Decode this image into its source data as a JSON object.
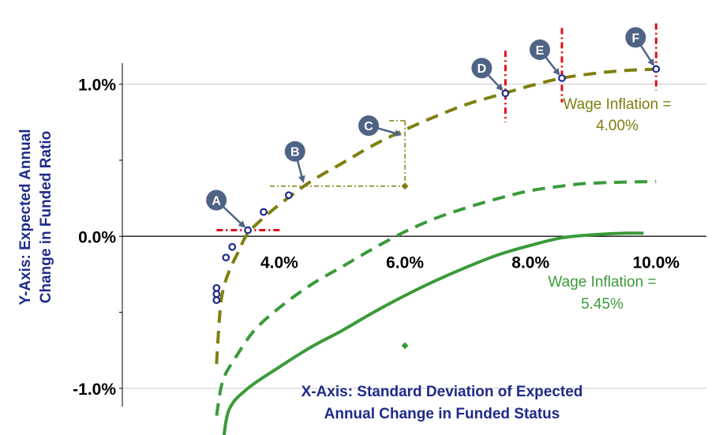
{
  "chart_data": {
    "type": "line",
    "x_label": [
      "X-Axis: Standard Deviation of Expected",
      "Annual Change in Funded Status"
    ],
    "y_label": [
      "Y-Axis: Expected Annual",
      "Change in Funded Ratio"
    ],
    "x_ticks": [
      "4.0%",
      "6.0%",
      "8.0%",
      "10.0%"
    ],
    "x_tick_values": [
      4,
      6,
      8,
      10
    ],
    "y_ticks": [
      "1.0%",
      "0.0%",
      "-1.0%"
    ],
    "y_tick_values": [
      1.0,
      0.0,
      -1.0
    ],
    "xlim": [
      1.5,
      10.8
    ],
    "ylim": [
      -1.25,
      1.45
    ],
    "grid": "horizontal",
    "series": [
      {
        "label": [
          "Wage Inflation =",
          "4.00%"
        ],
        "color": "#7f7f0f",
        "style": "dashed",
        "points": [
          [
            3.0,
            -0.84
          ],
          [
            3.05,
            -0.52
          ],
          [
            3.1,
            -0.36
          ],
          [
            3.2,
            -0.23
          ],
          [
            3.35,
            -0.1
          ],
          [
            3.5,
            0.02
          ],
          [
            3.8,
            0.14
          ],
          [
            4.1,
            0.24
          ],
          [
            4.5,
            0.36
          ],
          [
            5.0,
            0.48
          ],
          [
            5.5,
            0.6
          ],
          [
            6.0,
            0.7
          ],
          [
            6.5,
            0.79
          ],
          [
            7.0,
            0.87
          ],
          [
            7.5,
            0.93
          ],
          [
            8.0,
            0.99
          ],
          [
            8.5,
            1.04
          ],
          [
            9.0,
            1.07
          ],
          [
            9.5,
            1.09
          ],
          [
            10.1,
            1.1
          ]
        ]
      },
      {
        "color": "#3a9a3a",
        "style": "dashed",
        "points": [
          [
            3.0,
            -1.18
          ],
          [
            3.1,
            -0.95
          ],
          [
            3.3,
            -0.8
          ],
          [
            3.6,
            -0.62
          ],
          [
            4.0,
            -0.47
          ],
          [
            4.5,
            -0.32
          ],
          [
            5.0,
            -0.2
          ],
          [
            5.5,
            -0.08
          ],
          [
            6.0,
            0.03
          ],
          [
            6.5,
            0.12
          ],
          [
            7.0,
            0.19
          ],
          [
            7.5,
            0.25
          ],
          [
            8.0,
            0.3
          ],
          [
            8.5,
            0.33
          ],
          [
            9.0,
            0.35
          ],
          [
            10.0,
            0.36
          ]
        ]
      },
      {
        "label": [
          "Wage Inflation =",
          "5.45%"
        ],
        "color": "#3a9a3a",
        "style": "solid",
        "points": [
          [
            3.1,
            -1.38
          ],
          [
            3.2,
            -1.14
          ],
          [
            3.5,
            -1.0
          ],
          [
            4.0,
            -0.86
          ],
          [
            4.5,
            -0.73
          ],
          [
            5.0,
            -0.62
          ],
          [
            5.5,
            -0.5
          ],
          [
            6.0,
            -0.39
          ],
          [
            6.5,
            -0.29
          ],
          [
            7.0,
            -0.2
          ],
          [
            7.5,
            -0.12
          ],
          [
            8.0,
            -0.06
          ],
          [
            8.5,
            -0.01
          ],
          [
            9.0,
            0.01
          ],
          [
            9.5,
            0.02
          ],
          [
            9.8,
            0.02
          ]
        ]
      }
    ],
    "portfolio_points": [
      [
        3.0,
        -0.34
      ],
      [
        3.0,
        -0.38
      ],
      [
        3.0,
        -0.42
      ],
      [
        3.15,
        -0.14
      ],
      [
        3.25,
        -0.07
      ],
      [
        3.5,
        0.04
      ],
      [
        3.75,
        0.16
      ],
      [
        4.15,
        0.27
      ],
      [
        7.6,
        0.94
      ],
      [
        8.5,
        1.04
      ],
      [
        10.0,
        1.1
      ]
    ],
    "markers": [
      {
        "letter": "A",
        "x": 3.5,
        "y": 0.04
      },
      {
        "letter": "B",
        "x": 4.4,
        "y": 0.33
      },
      {
        "letter": "C",
        "x": 6.0,
        "y": 0.66
      },
      {
        "letter": "D",
        "x": 7.6,
        "y": 0.94
      },
      {
        "letter": "E",
        "x": 8.5,
        "y": 1.04
      },
      {
        "letter": "F",
        "x": 10.0,
        "y": 1.1
      }
    ],
    "diamond_points": [
      [
        6.0,
        0.33
      ],
      [
        6.0,
        -0.72
      ]
    ],
    "colors": {
      "navy": "#1f2a8a",
      "olive": "#7f7f0f",
      "green": "#3a9a3a",
      "red": "#e0101a",
      "badge": "#4f6485"
    }
  }
}
